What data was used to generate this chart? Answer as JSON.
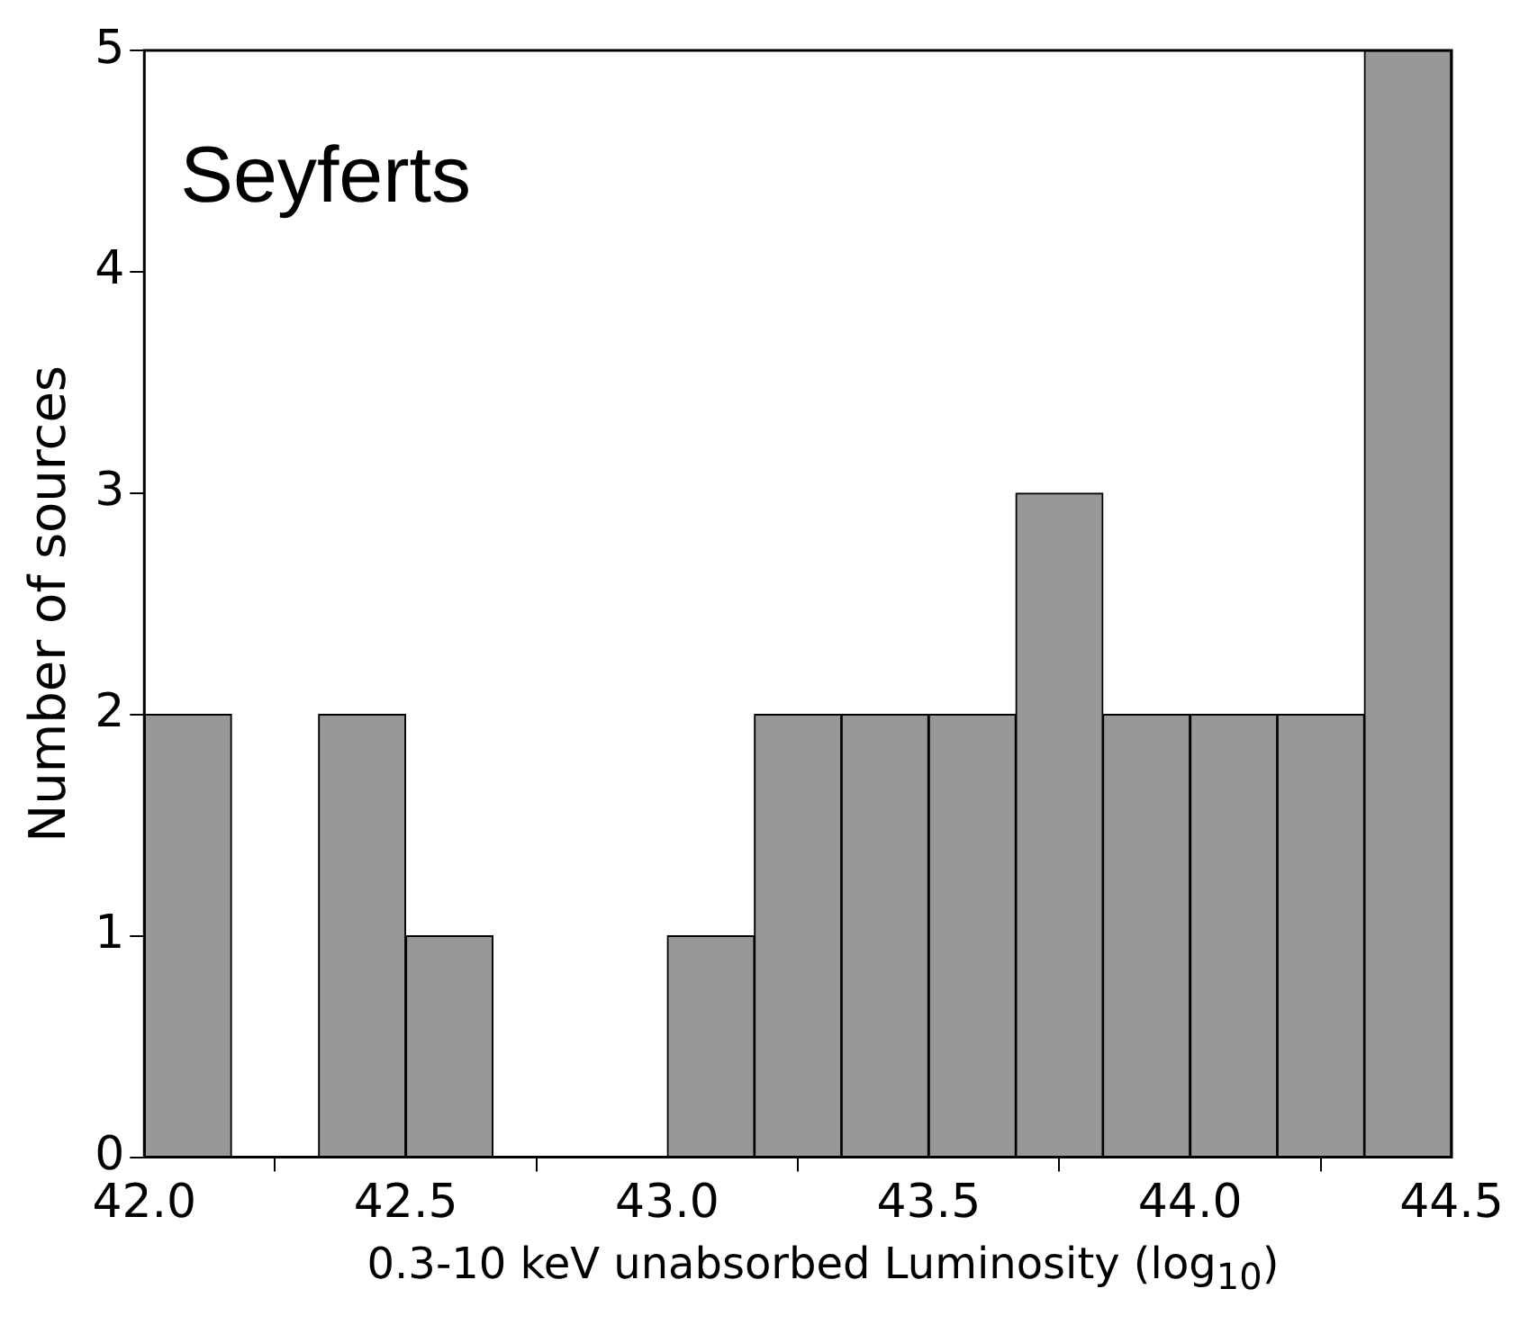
{
  "chart_data": {
    "type": "histogram",
    "annotations": [
      "Seyferts"
    ],
    "xlabel": "0.3-10 keV unabsorbed Luminosity (log$_{10}$)",
    "ylabel": "Number of sources",
    "bins": [
      42.0,
      42.167,
      42.333,
      42.5,
      42.667,
      42.833,
      43.0,
      43.167,
      43.333,
      43.5,
      43.667,
      43.833,
      44.0,
      44.167,
      44.333,
      44.5
    ],
    "values": [
      2,
      0,
      2,
      1,
      0,
      0,
      1,
      2,
      2,
      2,
      3,
      2,
      2,
      2,
      5
    ],
    "color": "#98989a",
    "xlim": [
      42.0,
      44.5
    ],
    "xticks": [
      {
        "value": 42.0,
        "label": "42.0"
      },
      {
        "value": 42.5,
        "label": "42.5"
      },
      {
        "value": 43.0,
        "label": "43.0"
      },
      {
        "value": 43.5,
        "label": "43.5"
      },
      {
        "value": 44.0,
        "label": "44.0"
      },
      {
        "value": 44.5,
        "label": "44.5"
      }
    ],
    "ylim": [
      0,
      5
    ],
    "yticks": [
      0,
      1,
      2,
      3,
      4,
      5
    ],
    "grid": false
  }
}
